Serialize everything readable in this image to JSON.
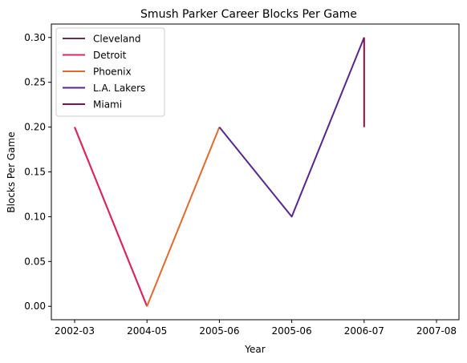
{
  "chart_data": {
    "type": "line",
    "title": "Smush Parker Career Blocks Per Game",
    "xlabel": "Year",
    "ylabel": "Blocks Per Game",
    "x_categories": [
      "2002-03",
      "2004-05",
      "2005-06",
      "2005-06",
      "2006-07",
      "2007-08"
    ],
    "ylim": [
      -0.015,
      0.315
    ],
    "yticks": [
      "0.00",
      "0.05",
      "0.10",
      "0.15",
      "0.20",
      "0.25",
      "0.30"
    ],
    "ytick_values": [
      0,
      0.05,
      0.1,
      0.15,
      0.2,
      0.25,
      0.3
    ],
    "grid": false,
    "legend_position": "upper-left",
    "series": [
      {
        "name": "Cleveland",
        "color": "#6b2f4b",
        "x": [
          0,
          1
        ],
        "y": [
          0.2,
          0.0
        ]
      },
      {
        "name": "Detroit",
        "color": "#e0245e",
        "x": [
          0,
          1
        ],
        "y": [
          0.2,
          0.0
        ]
      },
      {
        "name": "Phoenix",
        "color": "#e06a2e",
        "x": [
          1,
          2
        ],
        "y": [
          0.0,
          0.2
        ]
      },
      {
        "name": "L.A. Lakers",
        "color": "#56288a",
        "x": [
          2,
          3,
          4
        ],
        "y": [
          0.2,
          0.1,
          0.3
        ]
      },
      {
        "name": "Miami",
        "color": "#8a0f42",
        "x": [
          4,
          4
        ],
        "y": [
          0.3,
          0.2
        ]
      }
    ]
  }
}
